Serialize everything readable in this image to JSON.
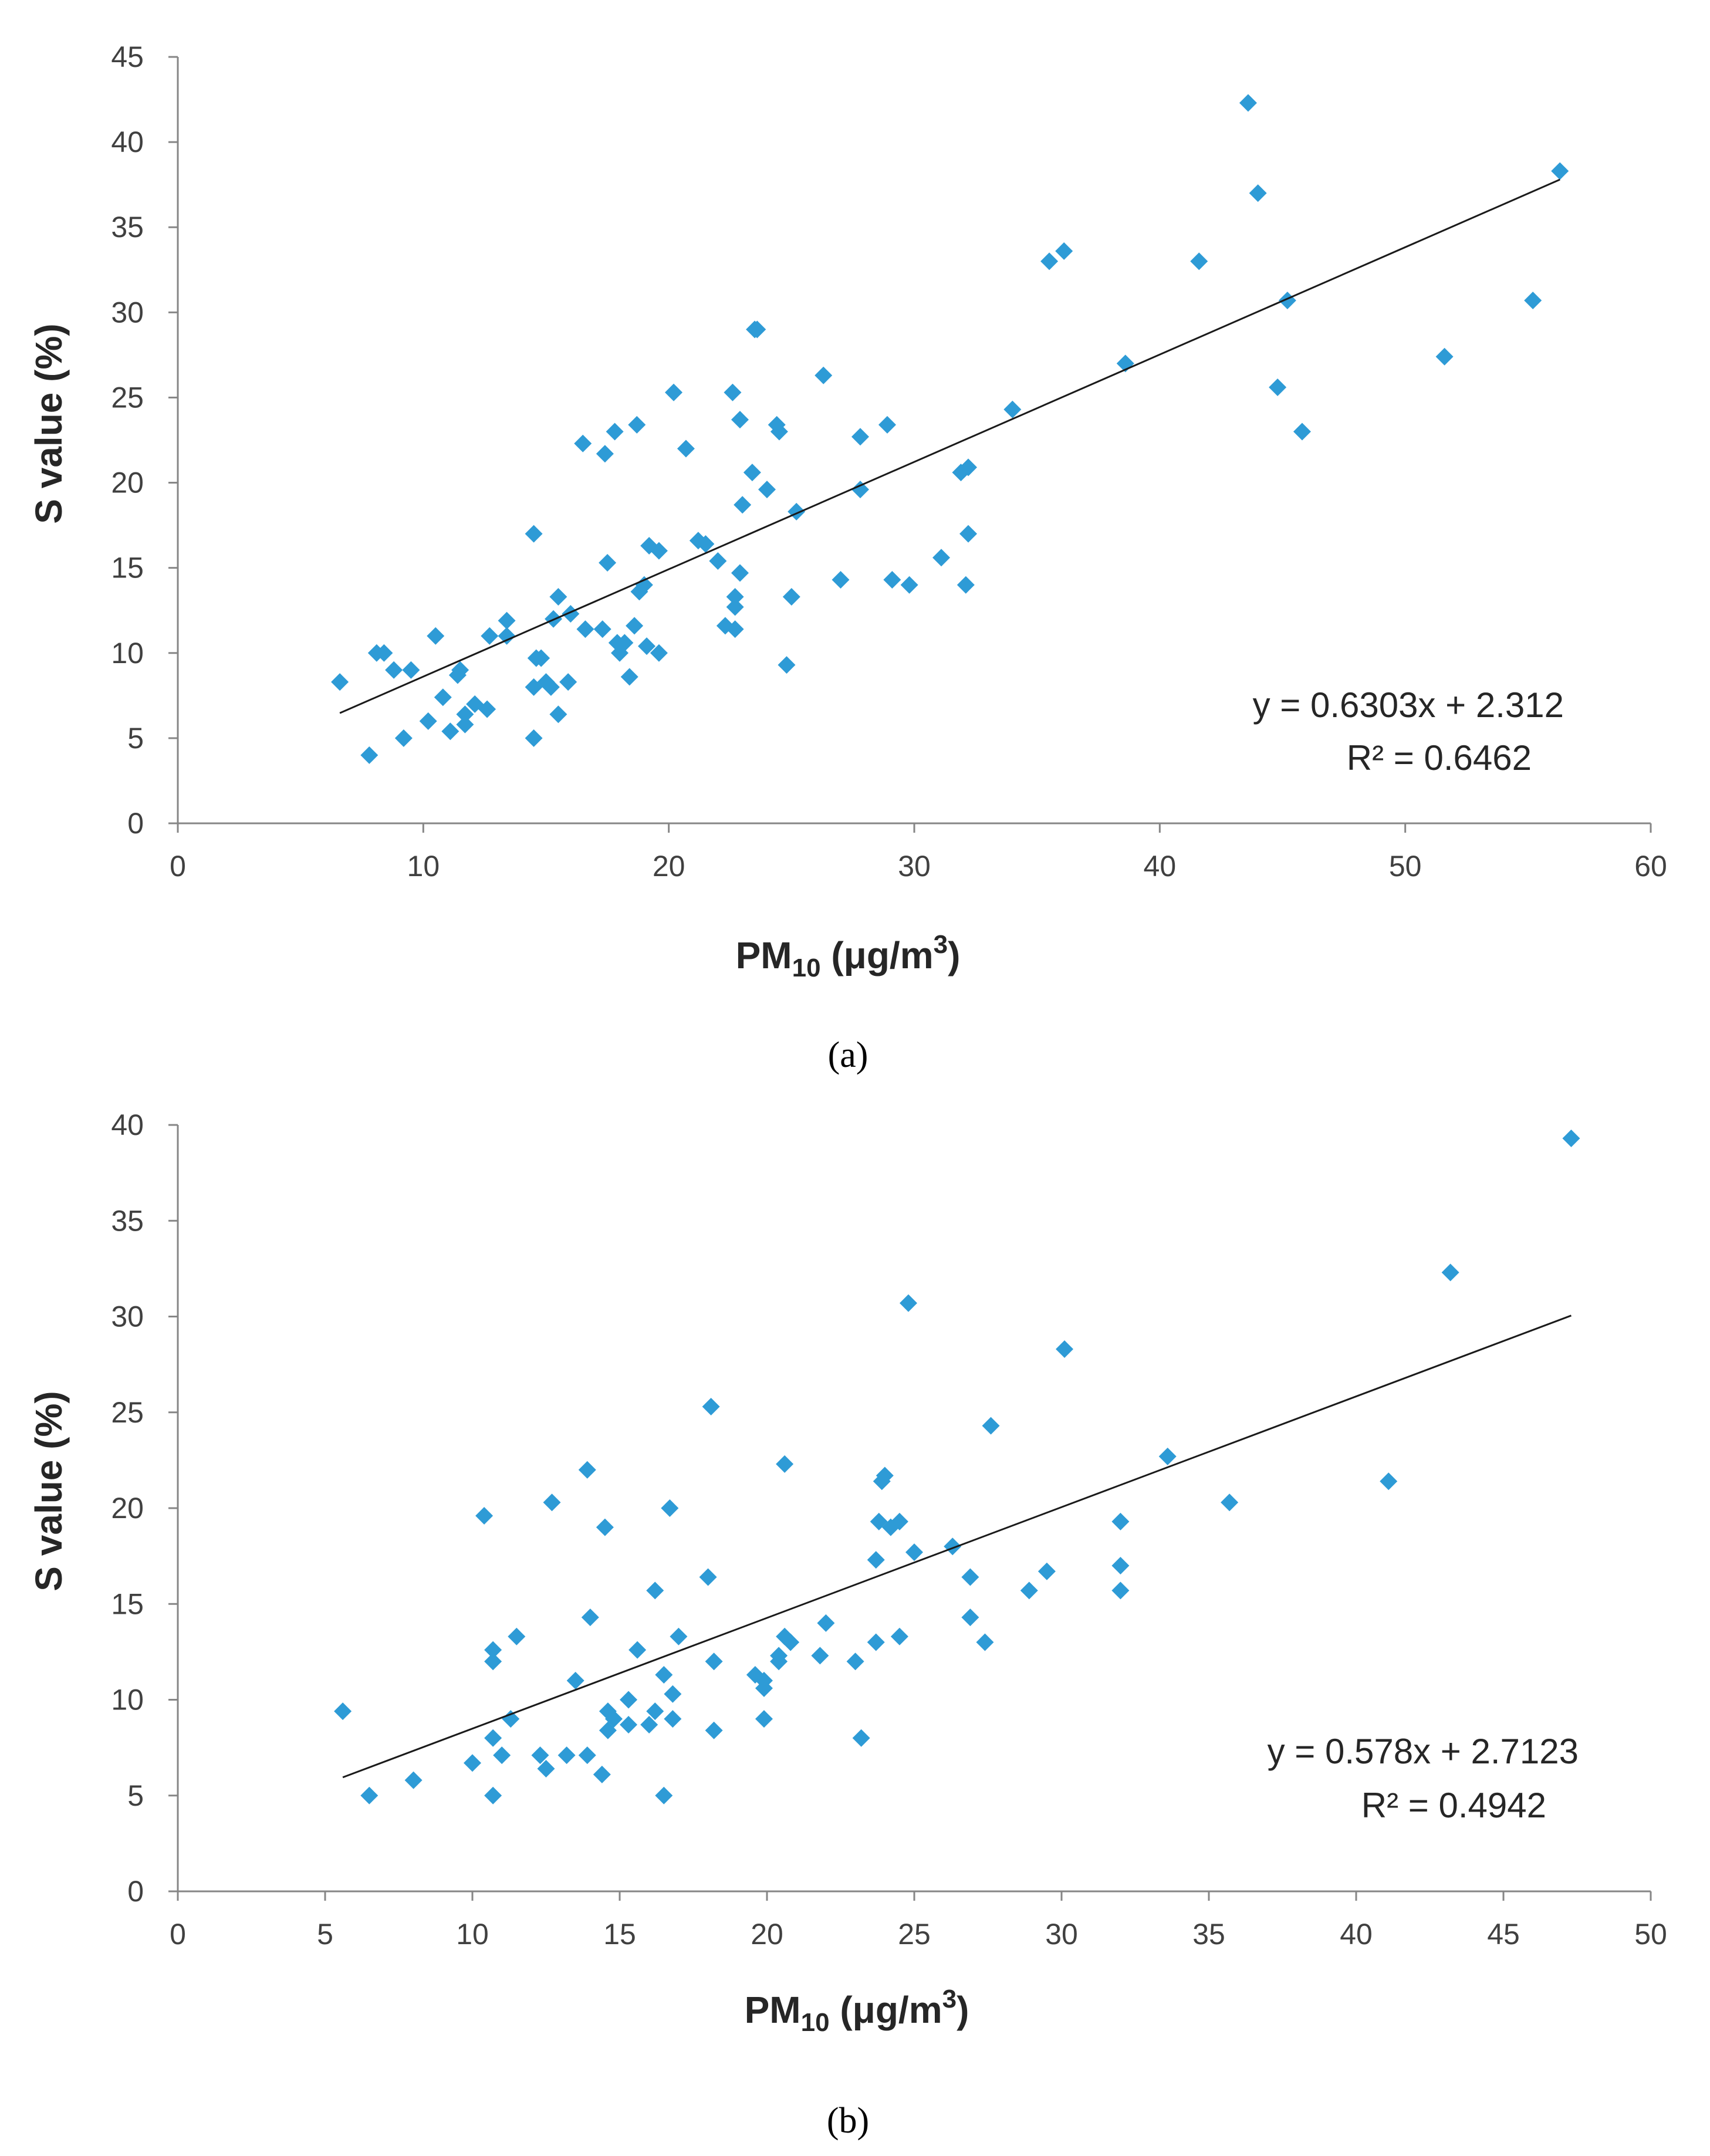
{
  "chart_data": [
    {
      "type": "scatter",
      "panel_label": "(a)",
      "xlabel": "PM10 (μg/m3)",
      "xlabel_main": "PM",
      "xlabel_sub": "10",
      "xlabel_rest": " (μg/m",
      "xlabel_sup": "3",
      "xlabel_close": ")",
      "ylabel": "S value (%)",
      "xlim": [
        0,
        60
      ],
      "ylim": [
        0,
        45
      ],
      "xticks": [
        "0",
        "10",
        "20",
        "30",
        "40",
        "50",
        "60"
      ],
      "yticks": [
        "0",
        "5",
        "10",
        "15",
        "20",
        "25",
        "30",
        "35",
        "40",
        "45"
      ],
      "grid": false,
      "marker_color": "#2e9bd6",
      "trendline": {
        "slope": 0.6303,
        "intercept": 2.312,
        "x_range": [
          6.6,
          56.3
        ]
      },
      "equation": "y = 0.6303x + 2.312",
      "r2": "R² = 0.6462",
      "points": [
        [
          6.6,
          8.3
        ],
        [
          7.8,
          4.0
        ],
        [
          8.1,
          10.0
        ],
        [
          8.4,
          10.0
        ],
        [
          8.8,
          9.0
        ],
        [
          9.2,
          5.0
        ],
        [
          9.5,
          9.0
        ],
        [
          10.2,
          6.0
        ],
        [
          10.5,
          11.0
        ],
        [
          10.8,
          7.4
        ],
        [
          11.1,
          5.4
        ],
        [
          11.4,
          8.7
        ],
        [
          11.5,
          9.0
        ],
        [
          11.7,
          6.4
        ],
        [
          11.7,
          5.8
        ],
        [
          12.1,
          7.0
        ],
        [
          12.6,
          6.7
        ],
        [
          12.7,
          11.0
        ],
        [
          13.4,
          11.9
        ],
        [
          13.4,
          11.0
        ],
        [
          14.5,
          17.0
        ],
        [
          14.5,
          8.0
        ],
        [
          14.5,
          5.0
        ],
        [
          14.6,
          9.7
        ],
        [
          14.8,
          9.7
        ],
        [
          15.0,
          8.3
        ],
        [
          15.2,
          8.0
        ],
        [
          15.3,
          12.0
        ],
        [
          15.5,
          13.3
        ],
        [
          15.5,
          6.4
        ],
        [
          15.9,
          8.3
        ],
        [
          16.0,
          12.3
        ],
        [
          16.5,
          22.3
        ],
        [
          16.6,
          11.4
        ],
        [
          17.3,
          11.4
        ],
        [
          17.4,
          21.7
        ],
        [
          17.5,
          15.3
        ],
        [
          17.8,
          23.0
        ],
        [
          17.9,
          10.6
        ],
        [
          18.0,
          10.0
        ],
        [
          18.2,
          10.6
        ],
        [
          18.4,
          8.6
        ],
        [
          18.6,
          11.6
        ],
        [
          18.7,
          23.4
        ],
        [
          18.8,
          13.6
        ],
        [
          19.0,
          14.0
        ],
        [
          19.1,
          10.4
        ],
        [
          19.2,
          16.3
        ],
        [
          19.6,
          16.0
        ],
        [
          19.6,
          10.0
        ],
        [
          20.2,
          25.3
        ],
        [
          20.7,
          22.0
        ],
        [
          21.2,
          16.6
        ],
        [
          21.5,
          16.4
        ],
        [
          22.0,
          15.4
        ],
        [
          22.3,
          11.6
        ],
        [
          22.6,
          25.3
        ],
        [
          22.7,
          13.3
        ],
        [
          22.7,
          12.7
        ],
        [
          22.7,
          11.4
        ],
        [
          22.9,
          14.7
        ],
        [
          22.9,
          23.7
        ],
        [
          23.0,
          18.7
        ],
        [
          23.4,
          20.6
        ],
        [
          23.5,
          29.0
        ],
        [
          23.6,
          29.0
        ],
        [
          24.0,
          19.6
        ],
        [
          24.4,
          23.4
        ],
        [
          24.5,
          23.0
        ],
        [
          24.8,
          9.3
        ],
        [
          25.0,
          13.3
        ],
        [
          25.2,
          18.3
        ],
        [
          26.3,
          26.3
        ],
        [
          27.0,
          14.3
        ],
        [
          27.8,
          22.7
        ],
        [
          27.8,
          19.6
        ],
        [
          28.9,
          23.4
        ],
        [
          29.1,
          14.3
        ],
        [
          29.8,
          14.0
        ],
        [
          31.1,
          15.6
        ],
        [
          31.9,
          20.6
        ],
        [
          32.1,
          14.0
        ],
        [
          32.2,
          17.0
        ],
        [
          32.2,
          20.9
        ],
        [
          34.0,
          24.3
        ],
        [
          35.5,
          33.0
        ],
        [
          36.1,
          33.6
        ],
        [
          38.6,
          27.0
        ],
        [
          41.6,
          33.0
        ],
        [
          43.6,
          42.3
        ],
        [
          44.0,
          37.0
        ],
        [
          44.8,
          25.6
        ],
        [
          45.2,
          30.7
        ],
        [
          45.8,
          23.0
        ],
        [
          51.6,
          27.4
        ],
        [
          55.2,
          30.7
        ],
        [
          56.3,
          38.3
        ]
      ]
    },
    {
      "type": "scatter",
      "panel_label": "(b)",
      "xlabel": "PM10 (μg/m3)",
      "xlabel_main": "PM",
      "xlabel_sub": "10",
      "xlabel_rest": " (μg/m",
      "xlabel_sup": "3",
      "xlabel_close": ")",
      "ylabel": "S value (%)",
      "xlim": [
        0,
        50
      ],
      "ylim": [
        0,
        40
      ],
      "xticks": [
        "0",
        "5",
        "10",
        "15",
        "20",
        "25",
        "30",
        "35",
        "40",
        "45",
        "50"
      ],
      "yticks": [
        "0",
        "5",
        "10",
        "15",
        "20",
        "25",
        "30",
        "35",
        "40"
      ],
      "grid": false,
      "marker_color": "#2e9bd6",
      "trendline": {
        "slope": 0.578,
        "intercept": 2.7123,
        "x_range": [
          5.6,
          47.3
        ]
      },
      "equation": "y = 0.578x + 2.7123",
      "r2": "R² = 0.4942",
      "points": [
        [
          5.6,
          9.4
        ],
        [
          6.5,
          5.0
        ],
        [
          8.0,
          5.8
        ],
        [
          10.0,
          6.7
        ],
        [
          10.4,
          19.6
        ],
        [
          10.7,
          12.0
        ],
        [
          10.7,
          12.6
        ],
        [
          10.7,
          8.0
        ],
        [
          10.7,
          5.0
        ],
        [
          11.0,
          7.1
        ],
        [
          11.3,
          9.0
        ],
        [
          11.5,
          13.3
        ],
        [
          12.3,
          7.1
        ],
        [
          12.5,
          6.4
        ],
        [
          12.7,
          20.3
        ],
        [
          13.2,
          7.1
        ],
        [
          13.5,
          11.0
        ],
        [
          13.9,
          7.1
        ],
        [
          13.9,
          22.0
        ],
        [
          14.0,
          14.3
        ],
        [
          14.4,
          6.1
        ],
        [
          14.5,
          19.0
        ],
        [
          14.6,
          9.4
        ],
        [
          14.6,
          8.4
        ],
        [
          14.8,
          9.0
        ],
        [
          15.3,
          10.0
        ],
        [
          15.3,
          8.7
        ],
        [
          15.6,
          12.6
        ],
        [
          16.0,
          8.7
        ],
        [
          16.2,
          9.4
        ],
        [
          16.2,
          15.7
        ],
        [
          16.5,
          11.3
        ],
        [
          16.5,
          5.0
        ],
        [
          16.7,
          20.0
        ],
        [
          16.8,
          10.3
        ],
        [
          16.8,
          9.0
        ],
        [
          17.0,
          13.3
        ],
        [
          18.0,
          16.4
        ],
        [
          18.1,
          25.3
        ],
        [
          18.2,
          8.4
        ],
        [
          18.2,
          12.0
        ],
        [
          19.6,
          11.3
        ],
        [
          19.9,
          11.0
        ],
        [
          19.9,
          9.0
        ],
        [
          19.9,
          10.6
        ],
        [
          20.4,
          12.0
        ],
        [
          20.4,
          12.3
        ],
        [
          20.6,
          13.3
        ],
        [
          20.6,
          22.3
        ],
        [
          20.8,
          13.0
        ],
        [
          21.8,
          12.3
        ],
        [
          22.0,
          14.0
        ],
        [
          23.0,
          12.0
        ],
        [
          23.2,
          8.0
        ],
        [
          23.7,
          17.3
        ],
        [
          23.7,
          13.0
        ],
        [
          23.8,
          19.3
        ],
        [
          23.9,
          21.4
        ],
        [
          24.0,
          21.7
        ],
        [
          24.2,
          19.0
        ],
        [
          24.5,
          13.3
        ],
        [
          24.5,
          19.3
        ],
        [
          24.8,
          30.7
        ],
        [
          25.0,
          17.7
        ],
        [
          26.3,
          18.0
        ],
        [
          26.9,
          16.4
        ],
        [
          26.9,
          14.3
        ],
        [
          27.4,
          13.0
        ],
        [
          27.6,
          24.3
        ],
        [
          28.9,
          15.7
        ],
        [
          29.5,
          16.7
        ],
        [
          30.1,
          28.3
        ],
        [
          32.0,
          19.3
        ],
        [
          32.0,
          17.0
        ],
        [
          32.0,
          15.7
        ],
        [
          33.6,
          22.7
        ],
        [
          35.7,
          20.3
        ],
        [
          41.1,
          21.4
        ],
        [
          43.2,
          32.3
        ],
        [
          47.3,
          39.3
        ]
      ]
    }
  ]
}
